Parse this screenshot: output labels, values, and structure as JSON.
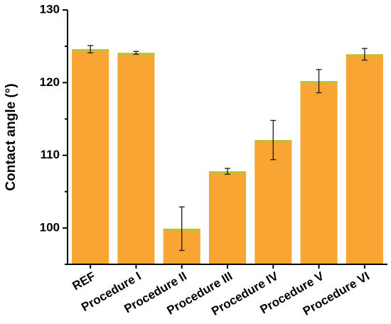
{
  "chart_data": {
    "type": "bar",
    "title": "",
    "xlabel": "",
    "ylabel": "Contact angle (°)",
    "ylim": [
      95,
      130
    ],
    "yticks": [
      100,
      110,
      120,
      130
    ],
    "categories": [
      "REF",
      "Procedure I",
      "Procedure II",
      "Procedure III",
      "Procedure IV",
      "Procedure V",
      "Procedure VI"
    ],
    "values": [
      124.6,
      124.1,
      99.9,
      107.8,
      112.1,
      120.2,
      123.9
    ],
    "errors": [
      0.5,
      0.2,
      3.0,
      0.4,
      2.7,
      1.6,
      0.8
    ],
    "grid": false,
    "legend": "none",
    "colors": {
      "bar": "#F9A534",
      "bar_top": "#B8C436",
      "axis": "#000000",
      "error": "#1a1a1a"
    }
  }
}
